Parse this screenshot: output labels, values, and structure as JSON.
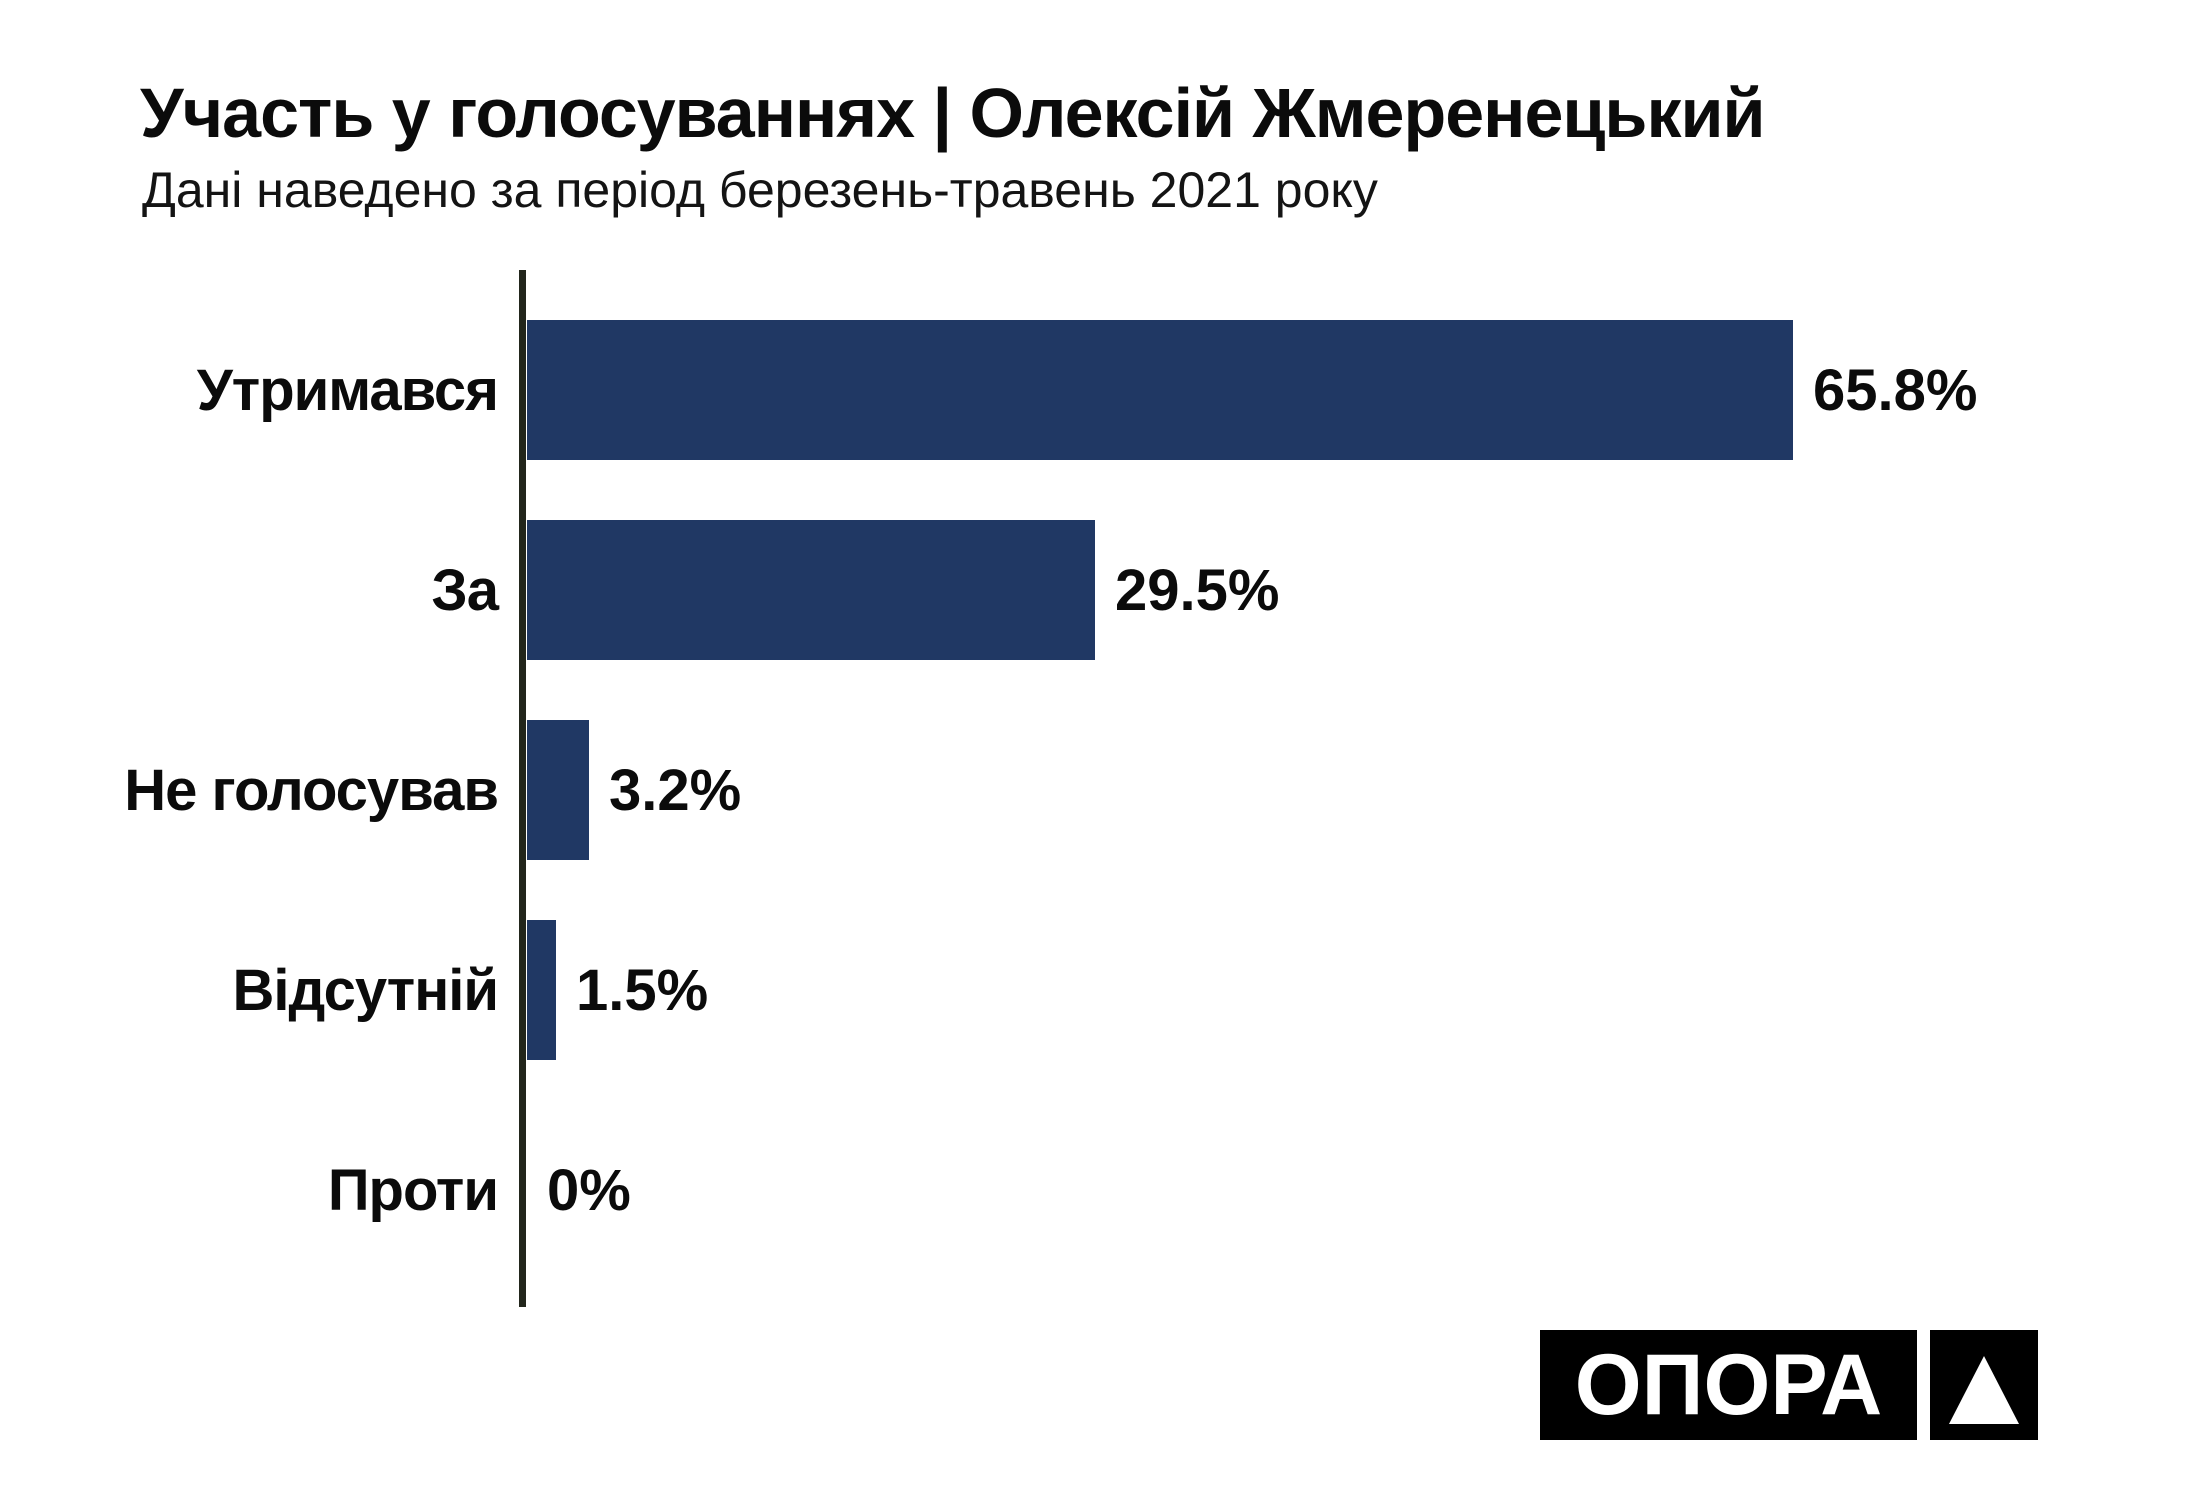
{
  "title": "Участь у голосуваннях | Олексій Жмеренецький",
  "subtitle": "Дані наведено за період березень-травень 2021 року",
  "colors": {
    "bar": "#203864",
    "axis": "#22261c",
    "text": "#0b0b0b",
    "logo_bg": "#000000",
    "logo_fg": "#ffffff",
    "background": "#ffffff"
  },
  "chart_data": {
    "type": "bar",
    "orientation": "horizontal",
    "title": "Участь у голосуваннях | Олексій Жмеренецький",
    "subtitle": "Дані наведено за період березень-травень 2021 року",
    "categories": [
      "Утримався",
      "За",
      "Не голосував",
      "Відсутній",
      "Проти"
    ],
    "values": [
      65.8,
      29.5,
      3.2,
      1.5,
      0
    ],
    "value_labels": [
      "65.8%",
      "29.5%",
      "3.2%",
      "1.5%",
      "0%"
    ],
    "unit": "%",
    "bar_color": "#203864",
    "grid": false,
    "legend": false,
    "value_label_position": "outside-end"
  },
  "logo": {
    "text": "ОПОРА",
    "mark": "triangle-icon"
  }
}
